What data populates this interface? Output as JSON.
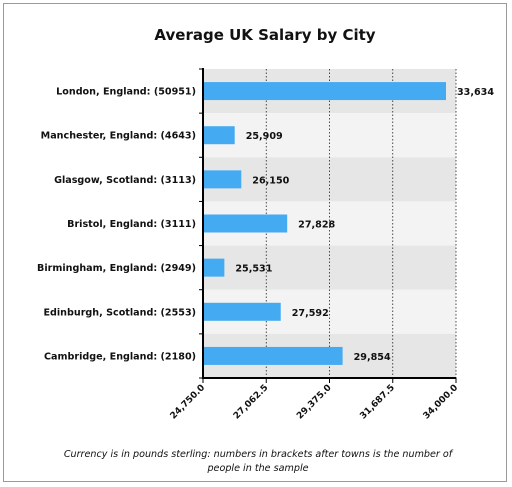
{
  "chart_data": {
    "type": "bar",
    "orientation": "horizontal",
    "title": "Average UK Salary by City",
    "categories": [
      "London, England: (50951)",
      "Manchester, England: (4643)",
      "Glasgow, Scotland: (3113)",
      "Bristol, England: (3111)",
      "Birmingham, England: (2949)",
      "Edinburgh, Scotland: (2553)",
      "Cambridge, England: (2180)"
    ],
    "values": [
      33634,
      25909,
      26150,
      27828,
      25531,
      27592,
      29854
    ],
    "value_labels": [
      "33,634",
      "25,909",
      "26,150",
      "27,828",
      "25,531",
      "27,592",
      "29,854"
    ],
    "xlim": [
      24750,
      34000
    ],
    "xticks": [
      24750,
      27062.5,
      29375,
      31687.5,
      34000
    ],
    "xtick_labels": [
      "24,750.0",
      "27,062.5",
      "29,375.0",
      "31,687.5",
      "34,000.0"
    ],
    "grid": "vertical dashed",
    "bar_color": "#44aaf2",
    "band_colors": [
      "#e6e6e6",
      "#f3f3f3"
    ],
    "caption": [
      "Currency is in pounds sterling: numbers in brackets after towns is the number of",
      "people in the sample"
    ]
  }
}
